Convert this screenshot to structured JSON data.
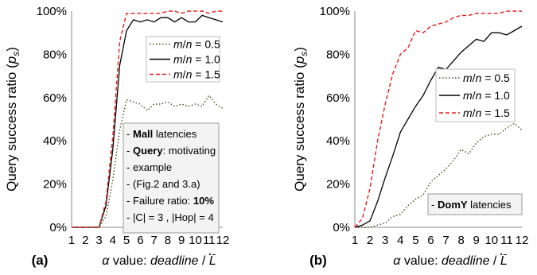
{
  "chart_data": [
    {
      "type": "line",
      "panel_label": "(a)",
      "ylabel": "Query success ratio (p_s)",
      "xlabel": "α value: deadline / L̄",
      "x_ticks": [
        "1",
        "2",
        "3",
        "4",
        "5",
        "6",
        "7",
        "8",
        "9",
        "10",
        "11",
        "12"
      ],
      "y_ticks": [
        "0%",
        "20%",
        "40%",
        "60%",
        "80%",
        "100%"
      ],
      "xlim": [
        1,
        12
      ],
      "ylim": [
        0,
        100
      ],
      "grid": false,
      "legend_position": "top-right",
      "series": [
        {
          "name": "m/n = 0.5",
          "style": "dotted",
          "color": "#4a4a1a",
          "x": [
            1,
            2,
            3,
            3.5,
            4,
            4.5,
            5,
            5.5,
            6,
            6.5,
            7,
            7.5,
            8,
            8.5,
            9,
            9.5,
            10,
            10.5,
            11,
            11.5,
            12
          ],
          "y": [
            0,
            0,
            0,
            5,
            22,
            45,
            59,
            58,
            57,
            54,
            57,
            57,
            58,
            56,
            57,
            56,
            57,
            56,
            61,
            57,
            55
          ]
        },
        {
          "name": "m/n = 1.0",
          "style": "solid",
          "color": "#000000",
          "x": [
            1,
            2,
            3,
            3.5,
            4,
            4.5,
            5,
            5.5,
            6,
            6.5,
            7,
            7.5,
            8,
            8.5,
            9,
            9.5,
            10,
            10.5,
            11,
            11.5,
            12
          ],
          "y": [
            0,
            0,
            0,
            10,
            36,
            75,
            91,
            96,
            95,
            96,
            95,
            97,
            97,
            95,
            97,
            95,
            95,
            98,
            97,
            96,
            95
          ]
        },
        {
          "name": "m/n = 1.5",
          "style": "dashed",
          "color": "#e0201b",
          "x": [
            1,
            2,
            3,
            3.5,
            4,
            4.5,
            5,
            5.5,
            6,
            6.5,
            7,
            7.5,
            8,
            8.5,
            9,
            9.5,
            10,
            10.5,
            11,
            11.5,
            12
          ],
          "y": [
            0,
            0,
            0,
            12,
            42,
            86,
            99,
            99,
            99,
            99,
            99,
            99,
            100,
            100,
            99,
            100,
            100,
            100,
            99,
            100,
            100
          ]
        }
      ],
      "annotation": {
        "lines": [
          [
            {
              "t": "Mall",
              "b": true
            },
            {
              "t": " latencies",
              "b": false
            }
          ],
          [
            {
              "t": "Query",
              "b": true
            },
            {
              "t": ": motivating",
              "b": false
            }
          ],
          [
            {
              "t": "example",
              "b": false
            }
          ],
          [
            {
              "t": "(Fig.2 and 3.a)",
              "b": false
            }
          ],
          [
            {
              "t": "Failure ratio:  ",
              "b": false
            },
            {
              "t": "10%",
              "b": true
            }
          ],
          [
            {
              "t": "|C| = 3 ,  |Hop| = 4",
              "b": false
            }
          ]
        ]
      }
    },
    {
      "type": "line",
      "panel_label": "(b)",
      "ylabel": "Query success ratio (p_s)",
      "xlabel": "α value: deadline / L̄",
      "x_ticks": [
        "1",
        "2",
        "3",
        "4",
        "5",
        "6",
        "7",
        "8",
        "9",
        "10",
        "11",
        "12"
      ],
      "y_ticks": [
        "0%",
        "20%",
        "40%",
        "60%",
        "80%",
        "100%"
      ],
      "xlim": [
        1,
        12
      ],
      "ylim": [
        0,
        100
      ],
      "grid": false,
      "legend_position": "center-right",
      "series": [
        {
          "name": "m/n = 0.5",
          "style": "dotted",
          "color": "#4a4a1a",
          "x": [
            1,
            1.5,
            2,
            2.5,
            3,
            3.5,
            4,
            4.5,
            5,
            5.5,
            6,
            6.5,
            7,
            7.5,
            8,
            8.5,
            9,
            9.5,
            10,
            10.5,
            11,
            11.5,
            12
          ],
          "y": [
            0,
            0,
            0,
            1,
            2,
            5,
            6,
            10,
            13,
            15,
            21,
            24,
            27,
            31,
            36,
            34,
            39,
            42,
            43,
            43,
            46,
            48,
            45
          ]
        },
        {
          "name": "m/n = 1.0",
          "style": "solid",
          "color": "#000000",
          "x": [
            1,
            1.5,
            2,
            2.5,
            3,
            3.5,
            4,
            4.5,
            5,
            5.5,
            6,
            6.5,
            7,
            7.5,
            8,
            8.5,
            9,
            9.5,
            10,
            10.5,
            11,
            11.5,
            12
          ],
          "y": [
            0,
            1,
            3,
            12,
            23,
            33,
            44,
            50,
            56,
            61,
            68,
            74,
            73,
            77,
            81,
            84,
            87,
            86,
            90,
            90,
            89,
            91,
            93
          ]
        },
        {
          "name": "m/n = 1.5",
          "style": "dashed",
          "color": "#e0201b",
          "x": [
            1,
            1.5,
            2,
            2.5,
            3,
            3.5,
            4,
            4.5,
            5,
            5.5,
            6,
            6.5,
            7,
            7.5,
            8,
            8.5,
            9,
            9.5,
            10,
            10.5,
            11,
            11.5,
            12
          ],
          "y": [
            0,
            4,
            18,
            40,
            57,
            71,
            80,
            83,
            91,
            90,
            93,
            94,
            95,
            97,
            98,
            98,
            99,
            99,
            99,
            99,
            100,
            100,
            100
          ]
        }
      ],
      "annotation": {
        "lines": [
          [
            {
              "t": "DomY",
              "b": true
            },
            {
              "t": " latencies",
              "b": false
            }
          ]
        ]
      }
    }
  ]
}
